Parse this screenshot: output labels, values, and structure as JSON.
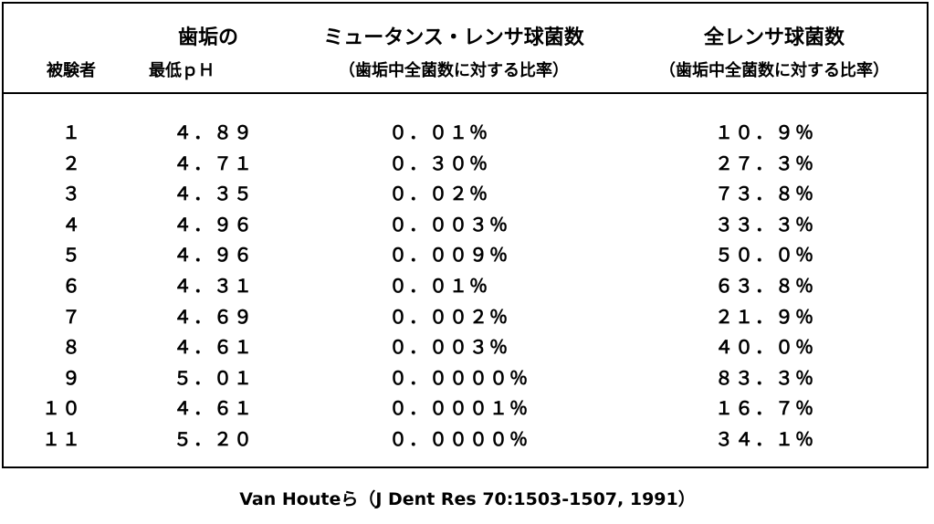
{
  "table": {
    "header": {
      "subject": "被験者",
      "ph": [
        "歯垢の",
        "最低ｐＨ"
      ],
      "mutans": [
        "ミュータンス・レンサ球菌数",
        "（歯垢中全菌数に対する比率）"
      ],
      "total": [
        "全レンサ球菌数",
        "（歯垢中全菌数に対する比率）"
      ]
    },
    "rows": [
      [
        "１",
        "４．８９",
        "０．０１％",
        "１０．９％"
      ],
      [
        "２",
        "４．７１",
        "０．３０％",
        "２７．３％"
      ],
      [
        "３",
        "４．３５",
        "０．０２％",
        "７３．８％"
      ],
      [
        "４",
        "４．９６",
        "０．００３％",
        "３３．３％"
      ],
      [
        "５",
        "４．９６",
        "０．００９％",
        "５０．０％"
      ],
      [
        "６",
        "４．３１",
        "０．０１％",
        "６３．８％"
      ],
      [
        "７",
        "４．６９",
        "０．００２％",
        "２１．９％"
      ],
      [
        "８",
        "４．６１",
        "０．００３％",
        "４０．０％"
      ],
      [
        "９",
        "５．０１",
        "０．００００％",
        "８３．３％"
      ],
      [
        "１０",
        "４．６１",
        "０．０００１％",
        "１６．７％"
      ],
      [
        "１１",
        "５．２０",
        "０．００００％",
        "３４．１％"
      ]
    ]
  },
  "footer": "Van Houteら（J Dent Res  70:1503-1507, 1991）"
}
